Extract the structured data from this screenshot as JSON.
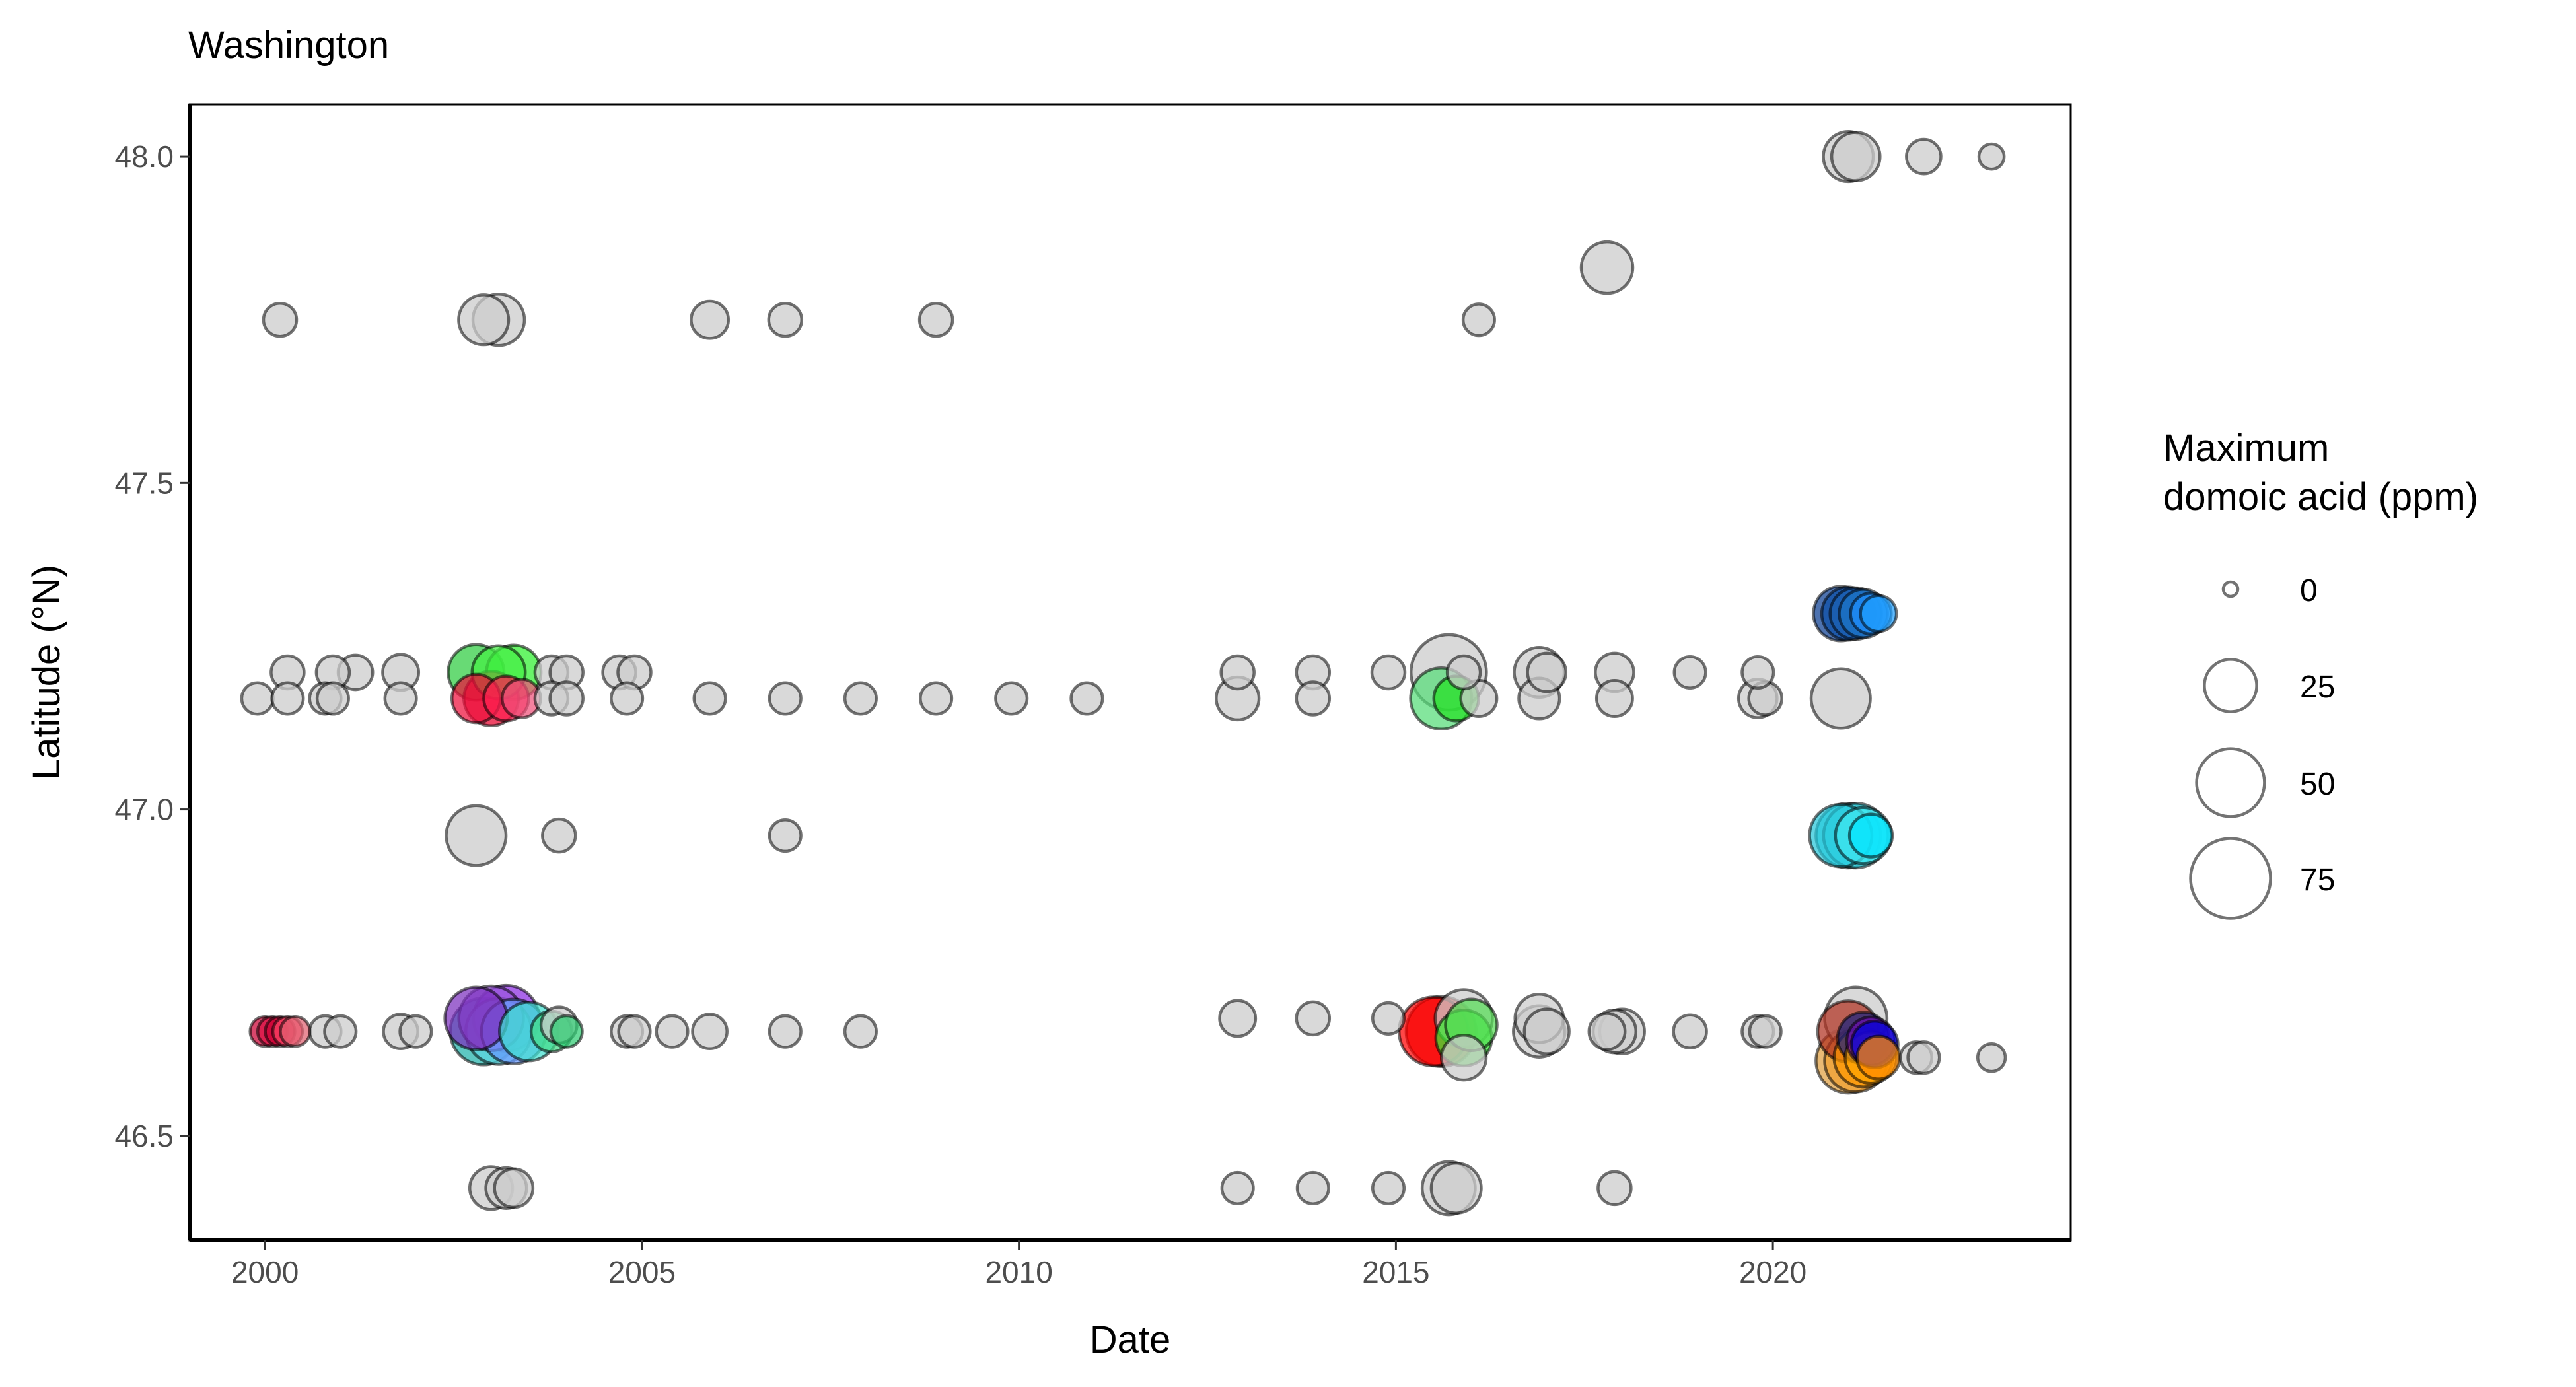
{
  "chart_data": {
    "type": "scatter",
    "title": "Washington",
    "xlabel": "Date",
    "ylabel": "Latitude (°N)",
    "xlim": [
      1999.0,
      2023.95
    ],
    "ylim": [
      46.34,
      48.08
    ],
    "x_ticks": [
      2000,
      2005,
      2010,
      2015,
      2020
    ],
    "x_tick_labels": [
      "2000",
      "2005",
      "2010",
      "2015",
      "2020"
    ],
    "y_ticks": [
      46.5,
      47.0,
      47.5,
      48.0
    ],
    "y_tick_labels": [
      "46.5",
      "47.0",
      "47.5",
      "48.0"
    ],
    "grid": false,
    "size_legend": {
      "title_line1": "Maximum",
      "title_line2": "domoic acid (ppm)",
      "entries": [
        {
          "label": "0",
          "value": 0
        },
        {
          "label": "25",
          "value": 25
        },
        {
          "label": "50",
          "value": 50
        },
        {
          "label": "75",
          "value": 75
        }
      ],
      "placement": "right"
    },
    "gray_color": "#cccccc",
    "points": [
      {
        "x": 2000.2,
        "y": 47.75,
        "da": 6
      },
      {
        "x": 2002.9,
        "y": 47.75,
        "da": 22
      },
      {
        "x": 2003.1,
        "y": 47.75,
        "da": 24
      },
      {
        "x": 2005.9,
        "y": 47.75,
        "da": 9
      },
      {
        "x": 2006.9,
        "y": 47.75,
        "da": 6
      },
      {
        "x": 2008.9,
        "y": 47.75,
        "da": 6
      },
      {
        "x": 2016.1,
        "y": 47.75,
        "da": 5
      },
      {
        "x": 2017.8,
        "y": 47.83,
        "da": 24
      },
      {
        "x": 2021.0,
        "y": 48.0,
        "da": 22
      },
      {
        "x": 2021.1,
        "y": 48.0,
        "da": 20
      },
      {
        "x": 2022.0,
        "y": 48.0,
        "da": 7
      },
      {
        "x": 2022.9,
        "y": 48.0,
        "da": 2
      },
      {
        "x": 2020.9,
        "y": 47.3,
        "da": 28,
        "color": "#0a3d91"
      },
      {
        "x": 2021.0,
        "y": 47.3,
        "da": 26,
        "color": "#0d4fa8"
      },
      {
        "x": 2021.1,
        "y": 47.3,
        "da": 24,
        "color": "#1a5fb4"
      },
      {
        "x": 2021.2,
        "y": 47.3,
        "da": 20,
        "color": "#1c75c8"
      },
      {
        "x": 2021.3,
        "y": 47.3,
        "da": 12,
        "color": "#1e90ff"
      },
      {
        "x": 2021.4,
        "y": 47.3,
        "da": 8,
        "color": "#1ea0ff"
      },
      {
        "x": 2000.3,
        "y": 47.21,
        "da": 6
      },
      {
        "x": 2000.9,
        "y": 47.21,
        "da": 6
      },
      {
        "x": 2001.2,
        "y": 47.21,
        "da": 7
      },
      {
        "x": 2001.8,
        "y": 47.21,
        "da": 8
      },
      {
        "x": 2002.8,
        "y": 47.21,
        "da": 30,
        "color": "#2ecc40"
      },
      {
        "x": 2003.1,
        "y": 47.21,
        "da": 26,
        "color": "#44ee44"
      },
      {
        "x": 2003.3,
        "y": 47.21,
        "da": 28,
        "color": "#2ef02e"
      },
      {
        "x": 2003.8,
        "y": 47.21,
        "da": 6
      },
      {
        "x": 2004.0,
        "y": 47.21,
        "da": 6
      },
      {
        "x": 2004.7,
        "y": 47.21,
        "da": 6
      },
      {
        "x": 2004.9,
        "y": 47.21,
        "da": 6
      },
      {
        "x": 2012.9,
        "y": 47.21,
        "da": 6
      },
      {
        "x": 2013.9,
        "y": 47.21,
        "da": 6
      },
      {
        "x": 2014.9,
        "y": 47.21,
        "da": 6
      },
      {
        "x": 2015.7,
        "y": 47.21,
        "da": 65
      },
      {
        "x": 2015.9,
        "y": 47.21,
        "da": 6
      },
      {
        "x": 2016.9,
        "y": 47.21,
        "da": 22
      },
      {
        "x": 2017.0,
        "y": 47.21,
        "da": 10
      },
      {
        "x": 2017.9,
        "y": 47.21,
        "da": 10
      },
      {
        "x": 2018.9,
        "y": 47.21,
        "da": 5
      },
      {
        "x": 2019.8,
        "y": 47.21,
        "da": 5
      },
      {
        "x": 1999.9,
        "y": 47.17,
        "da": 5
      },
      {
        "x": 2000.3,
        "y": 47.17,
        "da": 5
      },
      {
        "x": 2000.8,
        "y": 47.17,
        "da": 5
      },
      {
        "x": 2000.9,
        "y": 47.17,
        "da": 5
      },
      {
        "x": 2001.8,
        "y": 47.17,
        "da": 5
      },
      {
        "x": 2002.8,
        "y": 47.17,
        "da": 20,
        "color": "#ee0f3b"
      },
      {
        "x": 2003.0,
        "y": 47.17,
        "da": 28,
        "color": "#e8002d"
      },
      {
        "x": 2003.2,
        "y": 47.17,
        "da": 16,
        "color": "#ff2050"
      },
      {
        "x": 2003.4,
        "y": 47.17,
        "da": 10,
        "color": "#f0507a"
      },
      {
        "x": 2003.8,
        "y": 47.17,
        "da": 6
      },
      {
        "x": 2004.0,
        "y": 47.17,
        "da": 6
      },
      {
        "x": 2004.8,
        "y": 47.17,
        "da": 5
      },
      {
        "x": 2005.9,
        "y": 47.17,
        "da": 5
      },
      {
        "x": 2006.9,
        "y": 47.17,
        "da": 5
      },
      {
        "x": 2007.9,
        "y": 47.17,
        "da": 5
      },
      {
        "x": 2008.9,
        "y": 47.17,
        "da": 5
      },
      {
        "x": 2009.9,
        "y": 47.17,
        "da": 5
      },
      {
        "x": 2010.9,
        "y": 47.17,
        "da": 5
      },
      {
        "x": 2012.9,
        "y": 47.17,
        "da": 14
      },
      {
        "x": 2013.9,
        "y": 47.17,
        "da": 6
      },
      {
        "x": 2015.6,
        "y": 47.17,
        "da": 38,
        "color": "#55dd77"
      },
      {
        "x": 2015.8,
        "y": 47.17,
        "da": 16,
        "color": "#22e022"
      },
      {
        "x": 2016.1,
        "y": 47.17,
        "da": 8
      },
      {
        "x": 2016.9,
        "y": 47.17,
        "da": 12
      },
      {
        "x": 2017.9,
        "y": 47.17,
        "da": 8
      },
      {
        "x": 2019.8,
        "y": 47.17,
        "da": 10
      },
      {
        "x": 2019.9,
        "y": 47.17,
        "da": 6
      },
      {
        "x": 2020.9,
        "y": 47.17,
        "da": 35
      },
      {
        "x": 2002.8,
        "y": 46.96,
        "da": 36
      },
      {
        "x": 2003.9,
        "y": 46.96,
        "da": 6
      },
      {
        "x": 2006.9,
        "y": 46.96,
        "da": 5
      },
      {
        "x": 2020.9,
        "y": 46.96,
        "da": 40,
        "color": "#26c6da"
      },
      {
        "x": 2021.0,
        "y": 46.96,
        "da": 44,
        "color": "#2fd6e6"
      },
      {
        "x": 2021.1,
        "y": 46.96,
        "da": 44,
        "color": "#3ae0ee"
      },
      {
        "x": 2021.2,
        "y": 46.96,
        "da": 30,
        "color": "#40e8f0"
      },
      {
        "x": 2021.3,
        "y": 46.96,
        "da": 14,
        "color": "#00e5ff"
      },
      {
        "x": 2000.0,
        "y": 46.66,
        "da": 4,
        "color": "#cc0033"
      },
      {
        "x": 2000.1,
        "y": 46.66,
        "da": 4,
        "color": "#dd1144"
      },
      {
        "x": 2000.2,
        "y": 46.66,
        "da": 4,
        "color": "#cc0033"
      },
      {
        "x": 2000.3,
        "y": 46.66,
        "da": 4,
        "color": "#ff4466"
      },
      {
        "x": 2000.4,
        "y": 46.66,
        "da": 4,
        "color": "#e06070"
      },
      {
        "x": 2000.8,
        "y": 46.66,
        "da": 5
      },
      {
        "x": 2001.0,
        "y": 46.66,
        "da": 5
      },
      {
        "x": 2001.8,
        "y": 46.66,
        "da": 7
      },
      {
        "x": 2002.0,
        "y": 46.66,
        "da": 5
      },
      {
        "x": 2002.8,
        "y": 46.68,
        "da": 40,
        "color": "#7b2fbe"
      },
      {
        "x": 2003.0,
        "y": 46.68,
        "da": 44,
        "color": "#9955dd"
      },
      {
        "x": 2003.2,
        "y": 46.68,
        "da": 46,
        "color": "#8a2be2"
      },
      {
        "x": 2002.9,
        "y": 46.66,
        "da": 48,
        "color": "#20b2aa"
      },
      {
        "x": 2003.1,
        "y": 46.66,
        "da": 46,
        "color": "#5cd6e0"
      },
      {
        "x": 2003.3,
        "y": 46.66,
        "da": 44,
        "color": "#6699ff"
      },
      {
        "x": 2003.5,
        "y": 46.66,
        "da": 34,
        "color": "#40e0d0"
      },
      {
        "x": 2003.8,
        "y": 46.66,
        "da": 12,
        "color": "#44dd88"
      },
      {
        "x": 2003.9,
        "y": 46.67,
        "da": 8
      },
      {
        "x": 2004.0,
        "y": 46.66,
        "da": 5,
        "color": "#2ecc71"
      },
      {
        "x": 2004.8,
        "y": 46.66,
        "da": 5
      },
      {
        "x": 2004.9,
        "y": 46.66,
        "da": 5
      },
      {
        "x": 2005.4,
        "y": 46.66,
        "da": 5
      },
      {
        "x": 2005.9,
        "y": 46.66,
        "da": 7
      },
      {
        "x": 2006.9,
        "y": 46.66,
        "da": 5
      },
      {
        "x": 2007.9,
        "y": 46.66,
        "da": 5
      },
      {
        "x": 2012.9,
        "y": 46.68,
        "da": 8
      },
      {
        "x": 2013.9,
        "y": 46.68,
        "da": 6
      },
      {
        "x": 2014.9,
        "y": 46.68,
        "da": 5
      },
      {
        "x": 2015.5,
        "y": 46.66,
        "da": 52,
        "color": "#ff0000"
      },
      {
        "x": 2015.6,
        "y": 46.66,
        "da": 54,
        "color": "#e60000"
      },
      {
        "x": 2015.9,
        "y": 46.68,
        "da": 32
      },
      {
        "x": 2015.9,
        "y": 46.65,
        "da": 30,
        "color": "#33ee33"
      },
      {
        "x": 2016.0,
        "y": 46.67,
        "da": 24,
        "color": "#55dd55"
      },
      {
        "x": 2015.9,
        "y": 46.62,
        "da": 16
      },
      {
        "x": 2016.9,
        "y": 46.68,
        "da": 20
      },
      {
        "x": 2016.9,
        "y": 46.66,
        "da": 24
      },
      {
        "x": 2017.0,
        "y": 46.66,
        "da": 16
      },
      {
        "x": 2017.9,
        "y": 46.66,
        "da": 14
      },
      {
        "x": 2018.0,
        "y": 46.66,
        "da": 16
      },
      {
        "x": 2017.8,
        "y": 46.66,
        "da": 8
      },
      {
        "x": 2018.9,
        "y": 46.66,
        "da": 6
      },
      {
        "x": 2019.8,
        "y": 46.66,
        "da": 5
      },
      {
        "x": 2019.9,
        "y": 46.66,
        "da": 5
      },
      {
        "x": 2021.0,
        "y": 46.66,
        "da": 38,
        "color": "#b03020"
      },
      {
        "x": 2021.1,
        "y": 46.68,
        "da": 40
      },
      {
        "x": 2021.2,
        "y": 46.65,
        "da": 24,
        "color": "#1a237e"
      },
      {
        "x": 2021.3,
        "y": 46.645,
        "da": 20,
        "color": "#6a0dad"
      },
      {
        "x": 2021.35,
        "y": 46.64,
        "da": 18,
        "color": "#0000dd"
      },
      {
        "x": 2021.0,
        "y": 46.615,
        "da": 44,
        "color": "#e0a040"
      },
      {
        "x": 2021.1,
        "y": 46.615,
        "da": 40,
        "color": "#f0a030"
      },
      {
        "x": 2021.2,
        "y": 46.62,
        "da": 34,
        "color": "#ff9900"
      },
      {
        "x": 2021.3,
        "y": 46.62,
        "da": 24,
        "color": "#ffa500"
      },
      {
        "x": 2021.4,
        "y": 46.62,
        "da": 14,
        "color": "#ff8c00"
      },
      {
        "x": 2021.9,
        "y": 46.62,
        "da": 5
      },
      {
        "x": 2022.0,
        "y": 46.62,
        "da": 5
      },
      {
        "x": 2022.9,
        "y": 46.62,
        "da": 3
      },
      {
        "x": 2003.0,
        "y": 46.42,
        "da": 14
      },
      {
        "x": 2003.2,
        "y": 46.42,
        "da": 12
      },
      {
        "x": 2003.3,
        "y": 46.42,
        "da": 10
      },
      {
        "x": 2012.9,
        "y": 46.42,
        "da": 5
      },
      {
        "x": 2013.9,
        "y": 46.42,
        "da": 5
      },
      {
        "x": 2014.9,
        "y": 46.42,
        "da": 5
      },
      {
        "x": 2015.7,
        "y": 46.42,
        "da": 26
      },
      {
        "x": 2015.8,
        "y": 46.42,
        "da": 22
      },
      {
        "x": 2017.9,
        "y": 46.42,
        "da": 6
      }
    ]
  }
}
